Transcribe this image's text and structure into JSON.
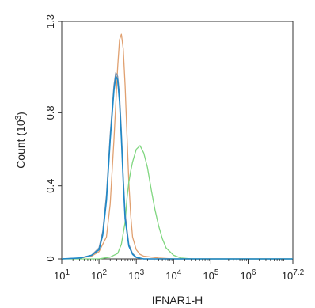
{
  "chart_data": {
    "type": "line",
    "title": "",
    "xlabel": "IFNAR1-H",
    "ylabel": "Count (10^3)",
    "xscale": "log10",
    "xlim": [
      1,
      7.2
    ],
    "ylim": [
      0,
      1.3
    ],
    "grid": false,
    "legend": "none",
    "x_ticks": [
      {
        "value": 1,
        "base": "10",
        "exp": "1"
      },
      {
        "value": 2,
        "base": "10",
        "exp": "2"
      },
      {
        "value": 3,
        "base": "10",
        "exp": "3"
      },
      {
        "value": 4,
        "base": "10",
        "exp": "4"
      },
      {
        "value": 5,
        "base": "10",
        "exp": "5"
      },
      {
        "value": 6,
        "base": "10",
        "exp": "6"
      },
      {
        "value": 7.2,
        "base": "10",
        "exp": "7.2"
      }
    ],
    "y_ticks": [
      {
        "value": 0,
        "label": "0"
      },
      {
        "value": 0.4,
        "label": "0.4"
      },
      {
        "value": 0.8,
        "label": "0.8"
      },
      {
        "value": 1.3,
        "label": "1.3"
      }
    ],
    "series": [
      {
        "color": "#e0a070",
        "x": [
          1.0,
          1.5,
          1.8,
          2.0,
          2.2,
          2.3,
          2.4,
          2.5,
          2.55,
          2.6,
          2.65,
          2.7,
          2.75,
          2.8,
          2.85,
          2.9,
          3.0,
          3.1,
          3.2,
          3.4,
          3.6,
          4.0,
          7.2
        ],
        "y": [
          0,
          0.005,
          0.015,
          0.04,
          0.12,
          0.3,
          0.65,
          1.05,
          1.2,
          1.23,
          1.15,
          0.95,
          0.68,
          0.42,
          0.24,
          0.12,
          0.05,
          0.025,
          0.015,
          0.01,
          0.005,
          0,
          0
        ]
      },
      {
        "color": "#7fd67f",
        "x": [
          1.0,
          2.0,
          2.3,
          2.5,
          2.6,
          2.7,
          2.75,
          2.8,
          2.85,
          2.9,
          3.0,
          3.1,
          3.2,
          3.3,
          3.4,
          3.5,
          3.6,
          3.7,
          3.8,
          4.0,
          4.2,
          4.5,
          7.2
        ],
        "y": [
          0,
          0,
          0.01,
          0.03,
          0.08,
          0.2,
          0.33,
          0.42,
          0.48,
          0.53,
          0.6,
          0.62,
          0.58,
          0.5,
          0.38,
          0.27,
          0.18,
          0.11,
          0.06,
          0.02,
          0.005,
          0,
          0
        ]
      },
      {
        "color": "#7b8fa8",
        "x": [
          1.0,
          1.5,
          1.8,
          2.0,
          2.1,
          2.2,
          2.3,
          2.4,
          2.45,
          2.5,
          2.55,
          2.6,
          2.65,
          2.7,
          2.8,
          2.9,
          3.0,
          3.2,
          7.2
        ],
        "y": [
          0,
          0.005,
          0.02,
          0.06,
          0.15,
          0.35,
          0.68,
          0.95,
          1.02,
          1.0,
          0.9,
          0.7,
          0.45,
          0.25,
          0.08,
          0.03,
          0.01,
          0,
          0
        ]
      },
      {
        "color": "#1e88c8",
        "x": [
          1.0,
          1.5,
          1.8,
          2.0,
          2.1,
          2.2,
          2.3,
          2.4,
          2.45,
          2.5,
          2.55,
          2.6,
          2.65,
          2.7,
          2.8,
          2.9,
          3.0,
          3.2,
          7.2
        ],
        "y": [
          0,
          0.005,
          0.02,
          0.05,
          0.13,
          0.32,
          0.65,
          0.92,
          1.0,
          0.98,
          0.86,
          0.66,
          0.42,
          0.22,
          0.07,
          0.025,
          0.008,
          0,
          0
        ]
      }
    ]
  }
}
